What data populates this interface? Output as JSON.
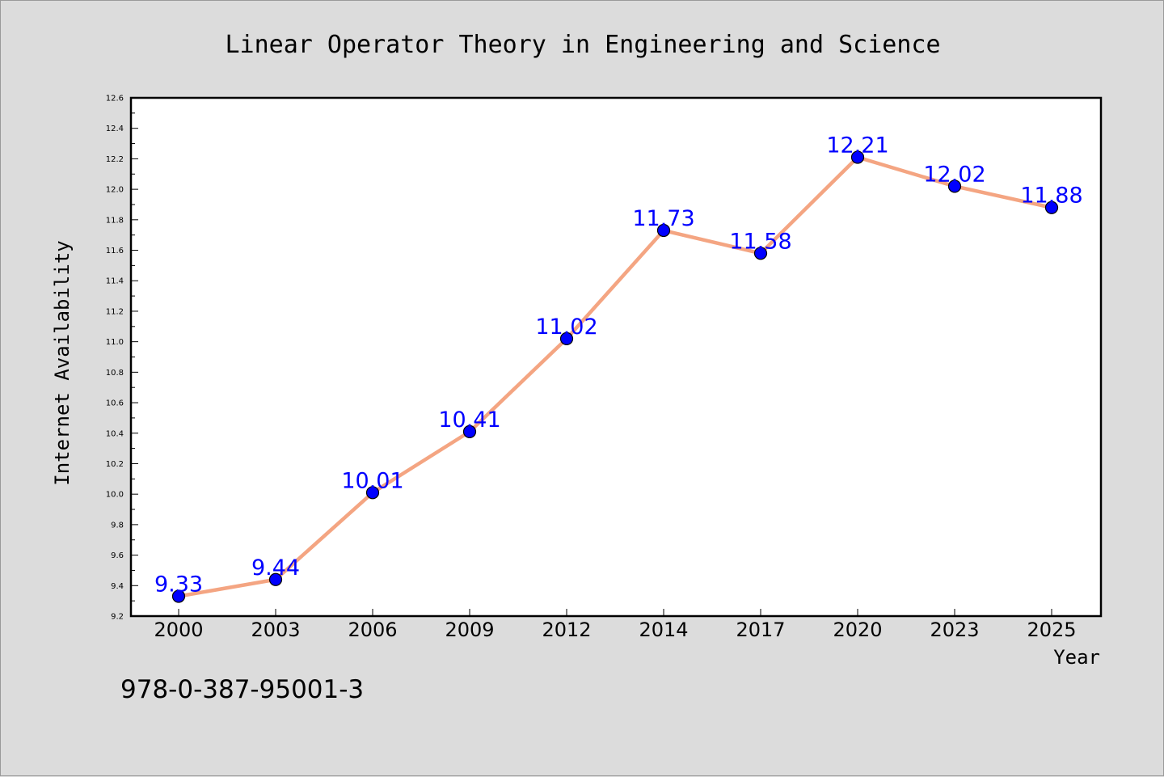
{
  "colors": {
    "background": "#dcdcdc",
    "plot_background": "#ffffff",
    "line": "#f4a582",
    "marker": "#0000ff",
    "data_label": "#0000ff",
    "axis": "#000000"
  },
  "footer": {
    "isbn": "978-0-387-95001-3"
  },
  "chart_data": {
    "type": "line",
    "title": "Linear Operator Theory in Engineering and Science",
    "xlabel": "Year",
    "ylabel": "Internet Availability",
    "categories": [
      "2000",
      "2003",
      "2006",
      "2009",
      "2012",
      "2014",
      "2017",
      "2020",
      "2023",
      "2025"
    ],
    "series": [
      {
        "values": [
          9.33,
          9.44,
          10.01,
          10.41,
          11.02,
          11.73,
          11.58,
          12.21,
          12.02,
          11.88
        ],
        "data_labels": [
          "9.33",
          "9.44",
          "10.01",
          "10.41",
          "11.02",
          "11.73",
          "11.58",
          "12.21",
          "12.02",
          "11.88"
        ]
      }
    ],
    "ylim": [
      9.2,
      12.6
    ],
    "yticks": [
      "9.2",
      "9.4",
      "9.6",
      "9.8",
      "10.0",
      "10.2",
      "10.4",
      "10.6",
      "10.8",
      "11.0",
      "11.2",
      "11.4",
      "11.6",
      "11.8",
      "12.0",
      "12.2",
      "12.4",
      "12.6"
    ],
    "grid": false,
    "legend": "none",
    "marker": "circle"
  }
}
